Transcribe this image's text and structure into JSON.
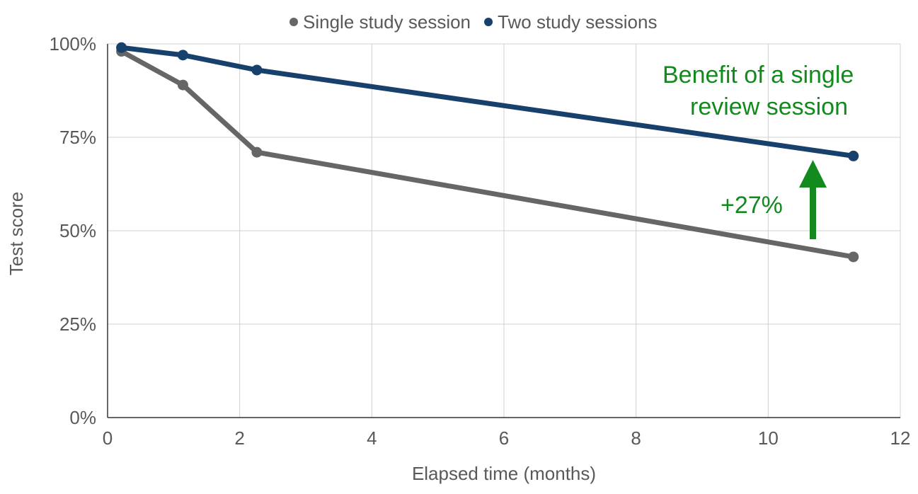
{
  "chart_data": {
    "type": "line",
    "title": "",
    "xlabel": "Elapsed time (months)",
    "ylabel": "Test score",
    "xlim": [
      0,
      12
    ],
    "ylim": [
      0,
      100
    ],
    "xticks": [
      0,
      2,
      4,
      6,
      8,
      10,
      12
    ],
    "yticks": [
      0,
      25,
      50,
      75,
      100
    ],
    "ytick_labels": [
      "0%",
      "25%",
      "50%",
      "75%",
      "100%"
    ],
    "grid": true,
    "legend_position": "top",
    "series": [
      {
        "name": "Single study session",
        "color": "#666666",
        "x": [
          0.21,
          1.14,
          2.26,
          11.29
        ],
        "y": [
          98,
          89,
          71,
          43
        ]
      },
      {
        "name": "Two study sessions",
        "color": "#17406D",
        "x": [
          0.21,
          1.14,
          2.26,
          11.29
        ],
        "y": [
          99,
          97,
          93,
          70
        ]
      }
    ],
    "annotations": {
      "benefit_line1": "Benefit of a single",
      "benefit_line2": "review session",
      "difference": "+27%",
      "color": "#138A1E"
    }
  }
}
